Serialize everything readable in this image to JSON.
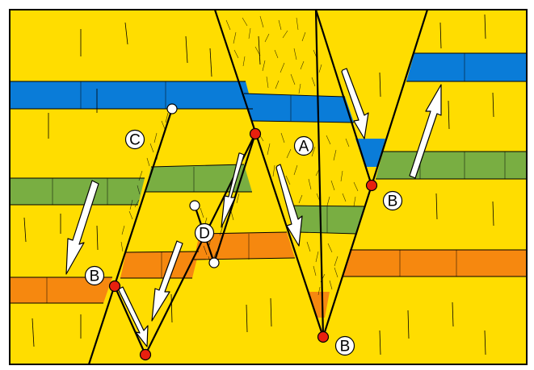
{
  "colors": {
    "background": "#FFDD00",
    "blue_layer": "#0A7CD8",
    "green_layer": "#79AE42",
    "orange_layer": "#F6880F",
    "fault_line": "#000000",
    "red_point": "#E8200E",
    "white_point": "#FFFFFF",
    "arrow_fill": "#FFFFFF"
  },
  "labels": {
    "A": "A",
    "B1": "B",
    "B2": "B",
    "B3": "B",
    "C": "C",
    "D": "D"
  },
  "layers": [
    "blue",
    "green",
    "orange"
  ],
  "icons": {
    "movement_arrow": "white-arrow-icon",
    "fault_tip_marker": "red-dot-icon",
    "fault_end_marker": "white-dot-icon"
  }
}
